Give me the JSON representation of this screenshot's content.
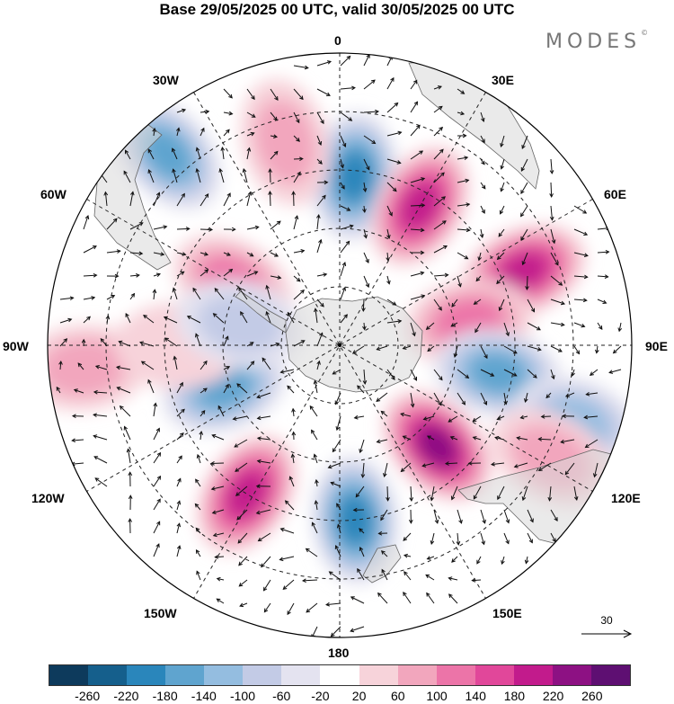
{
  "title": "Base 29/05/2025 00 UTC, valid 30/05/2025 00 UTC",
  "brand": "MODES",
  "brand_mark": "©",
  "longitude_labels": {
    "lon_0": "0",
    "lon_30e": "30E",
    "lon_60e": "60E",
    "lon_90e": "90E",
    "lon_120e": "120E",
    "lon_150e": "150E",
    "lon_180": "180",
    "lon_150w": "150W",
    "lon_120w": "120W",
    "lon_90w": "90W",
    "lon_60w": "60W",
    "lon_30w": "30W"
  },
  "reference_vector": {
    "label": "30"
  },
  "colorbar": {
    "colors": [
      "#0d3a5c",
      "#155f8c",
      "#2a86bb",
      "#5fa4cf",
      "#94bde0",
      "#c3cbe6",
      "#e4e3f0",
      "#ffffff",
      "#f7d3da",
      "#f2a6bd",
      "#ec74a8",
      "#e1479a",
      "#c21b8c",
      "#8d1183",
      "#5e0f72"
    ],
    "ticks": [
      "-260",
      "-220",
      "-180",
      "-140",
      "-100",
      "-60",
      "-20",
      "20",
      "60",
      "100",
      "140",
      "180",
      "220",
      "260"
    ]
  },
  "anomaly_blobs": [
    {
      "lon": 5,
      "rad": 0.58,
      "value": -200
    },
    {
      "lon": 30,
      "rad": 0.55,
      "value": 210
    },
    {
      "lon": 68,
      "rad": 0.68,
      "value": 190
    },
    {
      "lon": 80,
      "rad": 0.45,
      "value": 120
    },
    {
      "lon": 100,
      "rad": 0.55,
      "value": -150
    },
    {
      "lon": 108,
      "rad": 0.85,
      "value": -110
    },
    {
      "lon": 136,
      "rad": 0.48,
      "value": 220
    },
    {
      "lon": 118,
      "rad": 0.82,
      "value": 80
    },
    {
      "lon": 175,
      "rad": 0.6,
      "value": -210
    },
    {
      "lon": -148,
      "rad": 0.6,
      "value": 210
    },
    {
      "lon": -110,
      "rad": 0.42,
      "value": -140
    },
    {
      "lon": -95,
      "rad": 0.88,
      "value": 90
    },
    {
      "lon": -90,
      "rad": 0.55,
      "value": 40
    },
    {
      "lon": -60,
      "rad": 0.42,
      "value": 120
    },
    {
      "lon": -42,
      "rad": 0.88,
      "value": -140
    },
    {
      "lon": -15,
      "rad": 0.72,
      "value": 90
    },
    {
      "lon": -78,
      "rad": 0.35,
      "value": -60
    }
  ]
}
